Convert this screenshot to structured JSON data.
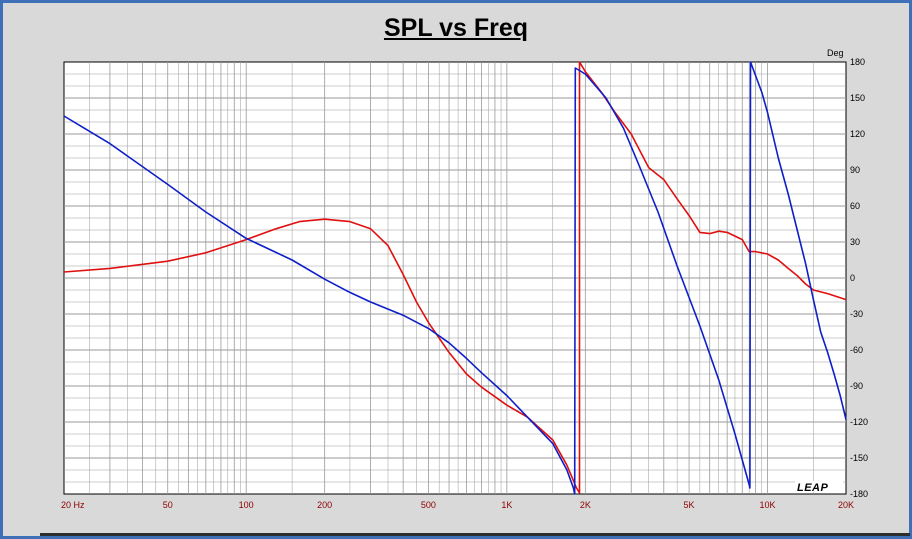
{
  "title": "SPL vs Freq",
  "logo_text": "LEAP",
  "colors": {
    "frame": "#3f6fb6",
    "background": "#d9d9d9",
    "plot_bg": "#ffffff",
    "grid": "#9a9a9a",
    "red": "#e01010",
    "blue": "#0f1fc8"
  },
  "chart_data": {
    "type": "line",
    "title": "SPL vs Freq",
    "x_scale": "log",
    "xlim": [
      20,
      20000
    ],
    "x_tick_labels": [
      {
        "value": 20,
        "label": "20  Hz"
      },
      {
        "value": 50,
        "label": "50"
      },
      {
        "value": 100,
        "label": "100"
      },
      {
        "value": 200,
        "label": "200"
      },
      {
        "value": 500,
        "label": "500"
      },
      {
        "value": 1000,
        "label": "1K"
      },
      {
        "value": 2000,
        "label": "2K"
      },
      {
        "value": 5000,
        "label": "5K"
      },
      {
        "value": 10000,
        "label": "10K"
      },
      {
        "value": 20000,
        "label": "20K"
      }
    ],
    "ylabel": "Deg",
    "ylim": [
      -180,
      180
    ],
    "y_ticks": [
      180,
      150,
      120,
      90,
      60,
      30,
      0,
      -30,
      -60,
      -90,
      -120,
      -150,
      -180
    ],
    "grid": true,
    "series": [
      {
        "color": "#e01010",
        "points": [
          [
            20,
            5
          ],
          [
            30,
            8
          ],
          [
            50,
            14
          ],
          [
            70,
            21
          ],
          [
            100,
            32
          ],
          [
            130,
            41
          ],
          [
            160,
            47
          ],
          [
            200,
            49
          ],
          [
            250,
            47
          ],
          [
            300,
            41
          ],
          [
            350,
            27
          ],
          [
            400,
            3
          ],
          [
            450,
            -20
          ],
          [
            500,
            -37
          ],
          [
            600,
            -62
          ],
          [
            700,
            -80
          ],
          [
            800,
            -91
          ],
          [
            1000,
            -106
          ],
          [
            1200,
            -116
          ],
          [
            1500,
            -135
          ],
          [
            1700,
            -156
          ],
          [
            1850,
            -175
          ],
          [
            1900,
            -179
          ],
          [
            1900,
            180
          ],
          [
            2000,
            172
          ],
          [
            2300,
            155
          ],
          [
            2600,
            138
          ],
          [
            3000,
            120
          ],
          [
            3500,
            92
          ],
          [
            4000,
            82
          ],
          [
            4500,
            66
          ],
          [
            5000,
            52
          ],
          [
            5500,
            38
          ],
          [
            6000,
            37
          ],
          [
            6500,
            39
          ],
          [
            7000,
            38
          ],
          [
            8000,
            32
          ],
          [
            8500,
            22
          ],
          [
            9000,
            22
          ],
          [
            10000,
            20
          ],
          [
            11000,
            15
          ],
          [
            12000,
            8
          ],
          [
            13000,
            2
          ],
          [
            14000,
            -5
          ],
          [
            15000,
            -10
          ],
          [
            17000,
            -13
          ],
          [
            20000,
            -18
          ]
        ]
      },
      {
        "color": "#0f1fc8",
        "points": [
          [
            20,
            135
          ],
          [
            30,
            112
          ],
          [
            50,
            78
          ],
          [
            70,
            55
          ],
          [
            100,
            33
          ],
          [
            150,
            15
          ],
          [
            200,
            -1
          ],
          [
            250,
            -12
          ],
          [
            300,
            -20
          ],
          [
            400,
            -31
          ],
          [
            500,
            -42
          ],
          [
            600,
            -54
          ],
          [
            700,
            -67
          ],
          [
            800,
            -79
          ],
          [
            1000,
            -98
          ],
          [
            1200,
            -116
          ],
          [
            1500,
            -138
          ],
          [
            1700,
            -160
          ],
          [
            1800,
            -175
          ],
          [
            1820,
            -180
          ],
          [
            1830,
            175
          ],
          [
            2000,
            170
          ],
          [
            2400,
            150
          ],
          [
            2800,
            125
          ],
          [
            3200,
            95
          ],
          [
            3800,
            55
          ],
          [
            4500,
            10
          ],
          [
            5500,
            -40
          ],
          [
            6500,
            -85
          ],
          [
            7500,
            -130
          ],
          [
            8500,
            -172
          ],
          [
            8560,
            -175
          ],
          [
            8600,
            180
          ],
          [
            9500,
            155
          ],
          [
            10000,
            138
          ],
          [
            11000,
            100
          ],
          [
            12000,
            70
          ],
          [
            13000,
            40
          ],
          [
            14000,
            12
          ],
          [
            15000,
            -18
          ],
          [
            16000,
            -45
          ],
          [
            17000,
            -62
          ],
          [
            18000,
            -80
          ],
          [
            19000,
            -98
          ],
          [
            20000,
            -118
          ]
        ]
      }
    ]
  }
}
